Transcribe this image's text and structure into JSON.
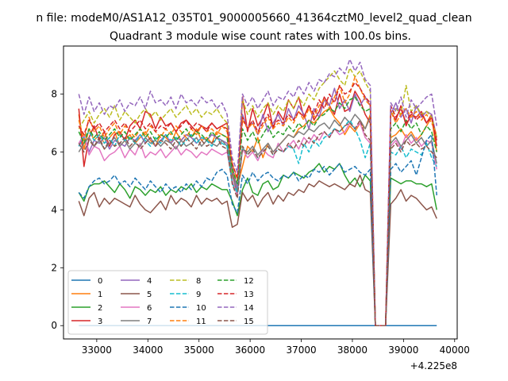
{
  "chart_data": {
    "type": "line",
    "suptitle": "n file: modeM0/AS1A12_035T01_9000005660_41364cztM0_level2_quad_clean",
    "title": "Quadrant 3 module wise count rates with 100.0s bins.",
    "xlabel": "",
    "ylabel": "",
    "x_offset_label": "+4.225e8",
    "xlim": [
      32350,
      40050
    ],
    "ylim": [
      -0.46,
      9.66
    ],
    "xticks": [
      33000,
      34000,
      35000,
      36000,
      37000,
      38000,
      39000,
      40000
    ],
    "xtick_labels": [
      "33000",
      "34000",
      "35000",
      "36000",
      "37000",
      "38000",
      "39000",
      "40000"
    ],
    "yticks": [
      0,
      2,
      4,
      6,
      8
    ],
    "ytick_labels": [
      "0",
      "2",
      "4",
      "6",
      "8"
    ],
    "grid": false,
    "legend_position": "lower-left",
    "legend_columns": 4,
    "x_start": 32650,
    "x_step": 100,
    "gap_start_index": 50,
    "gap_end_index": 61,
    "series": [
      {
        "name": "0",
        "color": "#1f77b4",
        "dash": "solid",
        "before": [
          0
        ],
        "after": [
          0
        ]
      },
      {
        "name": "1",
        "color": "#ff7f0e",
        "dash": "solid",
        "before": [
          7.3,
          6.1,
          6.8,
          6.4,
          6.6,
          6.3,
          6.5,
          6.7,
          6.2,
          6.4,
          6.6,
          6.3,
          6.5,
          6.7,
          6.4,
          6.2,
          6.6,
          6.5,
          6.3,
          6.7,
          6.4,
          6.6,
          6.5,
          6.8,
          6.4,
          6.5,
          6.3,
          6.7,
          6.6,
          6.5,
          5.2,
          4.8,
          5.5,
          6.2,
          6.0,
          6.5,
          5.8,
          6.3,
          6.0,
          6.2,
          6.4,
          6.6,
          6.5,
          6.8,
          6.9,
          7.1,
          7.0,
          7.2,
          7.4,
          7.5,
          7.2,
          7.0,
          6.6,
          6.9,
          6.7,
          7.0,
          6.8,
          7.3
        ],
        "after": [
          6.5,
          6.6,
          6.8,
          6.5,
          6.7,
          6.4,
          6.6,
          6.9,
          7.2,
          6.0
        ]
      },
      {
        "name": "2",
        "color": "#2ca02c",
        "dash": "solid",
        "before": [
          4.6,
          4.3,
          4.8,
          4.9,
          4.9,
          5.0,
          4.8,
          4.6,
          4.9,
          4.7,
          4.4,
          4.8,
          4.7,
          4.5,
          4.7,
          4.6,
          4.8,
          4.5,
          4.7,
          4.6,
          4.8,
          4.7,
          4.9,
          4.6,
          4.8,
          4.7,
          4.9,
          4.8,
          4.7,
          4.7,
          4.3,
          3.8,
          4.7,
          5.1,
          4.6,
          4.5,
          4.9,
          5.0,
          4.7,
          4.8,
          5.2,
          5.1,
          5.3,
          5.2,
          5.1,
          5.3,
          5.4,
          5.6,
          5.3,
          5.5,
          5.4,
          5.6,
          5.2,
          4.9,
          5.1,
          4.8,
          5.2,
          5.0
        ],
        "after": [
          5.1,
          5.0,
          4.9,
          5.0,
          5.0,
          4.9,
          4.9,
          4.8,
          4.9,
          4.0
        ]
      },
      {
        "name": "3",
        "color": "#d62728",
        "dash": "solid",
        "before": [
          7.5,
          5.5,
          6.5,
          6.9,
          6.4,
          6.7,
          6.2,
          6.6,
          6.7,
          6.4,
          6.9,
          7.1,
          6.8,
          7.4,
          7.3,
          6.8,
          7.2,
          6.9,
          7.0,
          6.7,
          7.0,
          7.1,
          6.9,
          6.7,
          6.9,
          6.8,
          7.0,
          6.8,
          6.9,
          7.0,
          5.3,
          4.5,
          7.9,
          6.7,
          7.5,
          6.9,
          7.2,
          7.7,
          6.8,
          7.4,
          7.1,
          7.8,
          7.5,
          7.9,
          7.2,
          7.6,
          7.1,
          7.4,
          7.9,
          7.6,
          7.3,
          8.0,
          7.4,
          7.5,
          8.1,
          7.8,
          7.3,
          7.0
        ],
        "after": [
          7.4,
          7.1,
          7.6,
          6.9,
          7.3,
          7.2,
          7.4,
          7.0,
          7.3,
          6.2
        ]
      },
      {
        "name": "4",
        "color": "#9467bd",
        "dash": "solid",
        "before": [
          6.2,
          6.6,
          6.0,
          6.4,
          6.3,
          6.5,
          6.1,
          6.4,
          6.3,
          6.2,
          6.5,
          6.4,
          6.6,
          6.3,
          6.5,
          6.2,
          6.4,
          6.6,
          6.3,
          6.5,
          6.4,
          6.6,
          6.5,
          6.3,
          6.5,
          6.4,
          6.6,
          6.5,
          6.4,
          6.3,
          5.5,
          4.7,
          7.3,
          6.8,
          7.0,
          6.6,
          7.3,
          6.7,
          7.0,
          7.3,
          6.9,
          7.5,
          7.1,
          7.6,
          7.3,
          6.8,
          7.5,
          7.2,
          7.8,
          7.6,
          8.2,
          7.5,
          7.8,
          7.4,
          8.0,
          7.6,
          7.9,
          7.6
        ],
        "after": [
          7.3,
          7.7,
          7.2,
          7.5,
          7.0,
          7.6,
          7.2,
          7.4,
          7.3,
          6.5
        ]
      },
      {
        "name": "5",
        "color": "#8c564b",
        "dash": "solid",
        "before": [
          4.3,
          3.8,
          4.4,
          4.6,
          4.1,
          4.4,
          4.2,
          4.4,
          4.3,
          4.2,
          4.1,
          4.5,
          4.2,
          4.0,
          3.9,
          4.1,
          4.3,
          4.0,
          4.5,
          4.2,
          4.4,
          4.3,
          4.1,
          4.5,
          4.2,
          4.4,
          4.3,
          4.4,
          4.2,
          4.3,
          3.4,
          3.5,
          4.6,
          4.3,
          4.5,
          4.1,
          4.4,
          4.6,
          4.2,
          4.5,
          4.3,
          4.6,
          4.5,
          4.7,
          4.6,
          4.9,
          4.8,
          5.0,
          4.9,
          4.8,
          4.9,
          4.8,
          4.7,
          4.9,
          4.8,
          5.2,
          4.7,
          4.6
        ],
        "after": [
          4.2,
          4.4,
          4.7,
          4.3,
          4.5,
          4.4,
          4.2,
          4.0,
          4.1,
          3.7
        ]
      },
      {
        "name": "6",
        "color": "#e377c2",
        "dash": "solid",
        "before": [
          6.3,
          6.6,
          5.9,
          6.2,
          6.1,
          5.7,
          5.9,
          6.0,
          6.2,
          5.8,
          6.1,
          5.9,
          6.3,
          5.8,
          6.0,
          5.9,
          6.1,
          5.8,
          6.0,
          6.2,
          5.9,
          6.1,
          6.0,
          5.8,
          6.0,
          5.9,
          6.1,
          6.0,
          5.9,
          6.0,
          5.0,
          4.5,
          6.1,
          5.8,
          6.0,
          5.7,
          6.1,
          5.9,
          5.8,
          6.3,
          6.0,
          6.2,
          6.4,
          6.1,
          6.5,
          6.3,
          6.6,
          6.4,
          6.7,
          6.5,
          6.8,
          6.6,
          6.7,
          7.0,
          6.8,
          7.0,
          6.5,
          6.3
        ],
        "after": [
          6.2,
          6.4,
          6.1,
          6.6,
          6.3,
          6.5,
          6.2,
          6.4,
          6.3,
          5.4
        ]
      },
      {
        "name": "7",
        "color": "#7f7f7f",
        "dash": "solid",
        "before": [
          6.0,
          6.3,
          6.5,
          6.2,
          6.4,
          6.1,
          6.3,
          6.5,
          6.2,
          6.4,
          6.1,
          6.3,
          6.2,
          6.5,
          6.3,
          6.4,
          6.2,
          6.4,
          6.3,
          6.1,
          6.4,
          6.2,
          6.3,
          6.5,
          6.2,
          6.4,
          6.3,
          6.2,
          6.4,
          6.2,
          5.2,
          4.6,
          6.1,
          6.0,
          6.2,
          5.9,
          6.1,
          6.3,
          6.0,
          6.2,
          6.4,
          6.6,
          6.5,
          6.7,
          6.6,
          6.8,
          6.7,
          6.9,
          7.0,
          6.8,
          7.1,
          6.9,
          7.2,
          7.0,
          7.3,
          7.1,
          6.8,
          7.2
        ],
        "after": [
          6.3,
          6.5,
          6.2,
          6.4,
          6.6,
          6.3,
          6.5,
          6.2,
          6.4,
          5.6
        ]
      },
      {
        "name": "8",
        "color": "#bcbd22",
        "dash": "dashed",
        "before": [
          6.8,
          7.1,
          7.4,
          7.0,
          7.3,
          7.5,
          7.2,
          7.6,
          7.1,
          7.4,
          7.2,
          7.0,
          7.3,
          7.5,
          7.2,
          7.4,
          7.1,
          7.3,
          7.5,
          7.2,
          7.4,
          7.6,
          7.3,
          7.5,
          7.2,
          7.4,
          7.3,
          7.5,
          7.2,
          7.0,
          5.3,
          5.0,
          7.8,
          7.3,
          7.6,
          7.2,
          7.5,
          7.7,
          7.3,
          7.6,
          7.4,
          7.8,
          7.5,
          7.9,
          7.6,
          8.0,
          7.8,
          8.2,
          8.4,
          8.6,
          8.8,
          8.5,
          8.3,
          8.9,
          8.6,
          8.8,
          8.4,
          8.1
        ],
        "after": [
          7.2,
          7.5,
          7.3,
          8.3,
          7.4,
          7.6,
          7.3,
          7.4,
          7.2,
          6.5
        ]
      },
      {
        "name": "9",
        "color": "#17becf",
        "dash": "dashed",
        "before": [
          6.2,
          6.5,
          6.7,
          6.4,
          6.6,
          6.3,
          6.5,
          6.2,
          6.6,
          6.4,
          6.5,
          6.3,
          6.6,
          6.4,
          6.2,
          6.5,
          6.3,
          6.6,
          6.4,
          6.5,
          6.2,
          6.4,
          6.6,
          6.3,
          6.5,
          6.4,
          6.2,
          6.5,
          6.3,
          6.2,
          4.9,
          4.6,
          6.2,
          5.9,
          6.1,
          5.8,
          6.0,
          6.2,
          5.9,
          6.1,
          6.0,
          6.2,
          6.1,
          5.6,
          6.3,
          6.0,
          6.4,
          6.2,
          6.5,
          6.6,
          6.8,
          6.7,
          6.9,
          7.1,
          6.8,
          6.4,
          5.8,
          6.3
        ],
        "after": [
          6.0,
          5.9,
          6.2,
          5.8,
          6.1,
          6.0,
          5.9,
          6.3,
          5.8,
          5.5
        ]
      },
      {
        "name": "10",
        "color": "#1f77b4",
        "dash": "dashed",
        "before": [
          4.6,
          4.4,
          4.8,
          5.0,
          5.1,
          4.9,
          5.0,
          5.2,
          4.9,
          5.0,
          4.8,
          5.1,
          4.9,
          4.7,
          5.0,
          4.8,
          4.6,
          4.9,
          4.7,
          4.8,
          4.6,
          4.9,
          4.7,
          5.0,
          4.8,
          5.1,
          5.0,
          5.3,
          5.4,
          5.2,
          4.2,
          3.9,
          5.2,
          4.9,
          5.3,
          5.0,
          5.2,
          5.3,
          5.1,
          5.0,
          5.2,
          5.1,
          5.3,
          5.0,
          5.2,
          5.1,
          5.4,
          5.3,
          5.5,
          5.2,
          5.4,
          5.6,
          5.3,
          5.4,
          5.5,
          5.3,
          5.2,
          5.4
        ],
        "after": [
          5.4,
          5.6,
          5.3,
          5.5,
          5.7,
          5.2,
          5.8,
          6.4,
          6.6,
          4.5
        ]
      },
      {
        "name": "11",
        "color": "#ff7f0e",
        "dash": "dashed",
        "before": [
          7.1,
          6.4,
          7.2,
          6.7,
          6.9,
          6.5,
          6.8,
          7.0,
          6.6,
          6.9,
          6.7,
          6.5,
          6.8,
          6.6,
          6.9,
          6.7,
          6.5,
          6.8,
          6.6,
          6.9,
          6.7,
          6.5,
          6.8,
          6.6,
          6.9,
          6.7,
          6.8,
          6.6,
          6.9,
          6.7,
          5.6,
          5.0,
          7.1,
          6.8,
          7.0,
          6.6,
          6.9,
          7.2,
          6.8,
          7.0,
          6.9,
          7.2,
          7.0,
          7.4,
          7.1,
          7.5,
          7.2,
          7.6,
          7.8,
          7.5,
          7.9,
          8.3,
          7.7,
          8.0,
          8.6,
          8.2,
          7.8,
          7.6
        ],
        "after": [
          7.4,
          7.0,
          7.3,
          7.5,
          7.2,
          7.4,
          7.1,
          7.3,
          7.0,
          6.6
        ]
      },
      {
        "name": "12",
        "color": "#2ca02c",
        "dash": "dashed",
        "before": [
          6.7,
          6.3,
          6.8,
          6.5,
          6.7,
          6.4,
          6.6,
          6.8,
          6.5,
          6.7,
          6.4,
          6.6,
          6.8,
          6.5,
          6.7,
          6.4,
          6.6,
          6.5,
          6.7,
          6.4,
          6.6,
          6.8,
          6.5,
          6.7,
          6.6,
          6.4,
          6.7,
          6.5,
          6.6,
          6.5,
          5.4,
          4.9,
          6.8,
          6.4,
          6.7,
          6.3,
          6.6,
          6.9,
          6.5,
          6.7,
          6.6,
          6.9,
          6.7,
          7.0,
          6.8,
          7.1,
          6.9,
          7.2,
          7.3,
          7.5,
          7.4,
          7.7,
          7.5,
          7.8,
          7.9,
          7.6,
          7.4,
          7.5
        ],
        "after": [
          6.8,
          7.0,
          6.7,
          7.1,
          6.8,
          7.0,
          6.6,
          6.9,
          6.7,
          6.0
        ]
      },
      {
        "name": "13",
        "color": "#d62728",
        "dash": "dashed",
        "before": [
          6.9,
          6.6,
          7.1,
          6.8,
          7.0,
          6.7,
          6.9,
          7.1,
          6.8,
          7.0,
          6.7,
          6.9,
          7.1,
          6.8,
          7.0,
          6.7,
          6.9,
          6.8,
          7.0,
          6.7,
          6.9,
          7.1,
          6.8,
          7.0,
          6.9,
          6.7,
          7.0,
          6.8,
          6.9,
          6.8,
          5.6,
          5.1,
          7.2,
          6.8,
          7.1,
          6.7,
          7.0,
          7.3,
          6.9,
          7.1,
          7.0,
          7.3,
          7.1,
          7.4,
          7.2,
          7.6,
          7.3,
          7.8,
          7.5,
          8.0,
          7.7,
          8.3,
          8.0,
          8.1,
          8.4,
          8.2,
          7.9,
          7.7
        ],
        "after": [
          7.6,
          7.2,
          7.5,
          7.0,
          7.4,
          7.1,
          7.3,
          7.0,
          7.2,
          6.4
        ]
      },
      {
        "name": "14",
        "color": "#9467bd",
        "dash": "dashed",
        "before": [
          8.0,
          7.3,
          7.9,
          7.4,
          7.7,
          7.3,
          7.6,
          7.5,
          7.8,
          7.4,
          7.7,
          7.6,
          7.9,
          7.5,
          8.1,
          7.7,
          7.8,
          7.6,
          7.9,
          7.5,
          8.0,
          7.7,
          7.8,
          7.6,
          7.9,
          7.7,
          7.8,
          7.5,
          7.7,
          7.3,
          5.8,
          5.3,
          8.0,
          7.6,
          7.9,
          7.5,
          7.8,
          8.1,
          7.6,
          7.9,
          7.8,
          8.1,
          7.9,
          8.3,
          8.0,
          8.4,
          8.1,
          8.5,
          8.4,
          8.7,
          8.6,
          8.9,
          8.7,
          9.2,
          8.8,
          9.1,
          8.5,
          8.3
        ],
        "after": [
          7.7,
          7.4,
          7.9,
          7.2,
          7.8,
          7.5,
          7.7,
          7.9,
          8.0,
          6.9
        ]
      },
      {
        "name": "15",
        "color": "#8c564b",
        "dash": "dashed",
        "before": [
          6.3,
          6.0,
          6.4,
          6.2,
          6.5,
          6.1,
          6.4,
          6.2,
          6.3,
          6.5,
          6.2,
          6.4,
          6.1,
          6.3,
          6.5,
          6.2,
          6.4,
          6.3,
          6.1,
          6.4,
          6.2,
          6.5,
          6.3,
          6.1,
          6.4,
          6.2,
          6.3,
          6.5,
          6.2,
          6.1,
          4.9,
          4.4,
          6.2,
          5.9,
          6.1,
          5.8,
          6.0,
          6.2,
          5.9,
          6.1,
          6.0,
          6.3,
          6.1,
          6.4,
          6.2,
          6.5,
          6.3,
          6.6,
          6.7,
          6.5,
          6.8,
          6.7,
          6.9,
          7.0,
          6.8,
          7.1,
          6.6,
          6.4
        ],
        "after": [
          6.1,
          6.3,
          6.0,
          6.4,
          6.2,
          6.3,
          6.1,
          6.2,
          6.0,
          5.8
        ]
      }
    ]
  }
}
